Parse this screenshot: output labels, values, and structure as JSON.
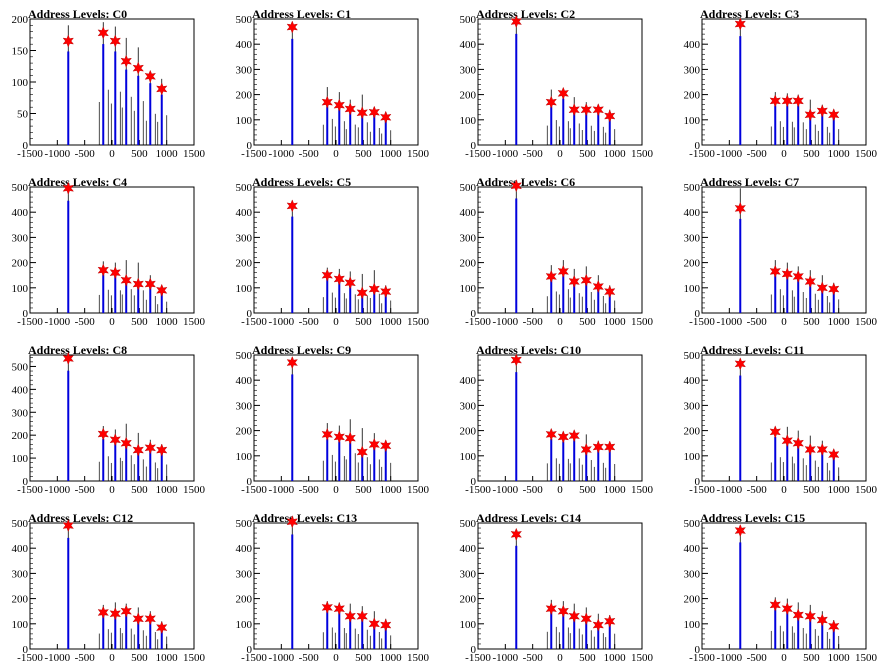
{
  "chart_data": [
    {
      "type": "bar",
      "title": "Address Levels: C0",
      "xlim": [
        -1500,
        1500
      ],
      "ylim": [
        0,
        200
      ],
      "yticks": [
        0,
        50,
        100,
        150,
        200
      ],
      "xticks": [
        -1500,
        -1000,
        -500,
        0,
        500,
        1000,
        1500
      ],
      "x": [
        -800,
        -160,
        60,
        260,
        480,
        700,
        910
      ],
      "peak_markers": [
        165,
        178,
        165,
        133,
        122,
        109,
        89
      ],
      "spike_heights": [
        190,
        195,
        188,
        170,
        155,
        110,
        105
      ]
    },
    {
      "type": "bar",
      "title": "Address Levels: C1",
      "xlim": [
        -1500,
        1500
      ],
      "ylim": [
        0,
        500
      ],
      "yticks": [
        0,
        100,
        200,
        300,
        400,
        500
      ],
      "xticks": [
        -1500,
        -1000,
        -500,
        0,
        500,
        1000,
        1500
      ],
      "x": [
        -800,
        -160,
        60,
        260,
        480,
        700,
        910
      ],
      "peak_markers": [
        468,
        170,
        158,
        143,
        128,
        130,
        110
      ],
      "spike_heights": [
        470,
        230,
        210,
        180,
        200,
        150,
        130
      ]
    },
    {
      "type": "bar",
      "title": "Address Levels: C2",
      "xlim": [
        -1500,
        1500
      ],
      "ylim": [
        0,
        500
      ],
      "yticks": [
        0,
        100,
        200,
        300,
        400,
        500
      ],
      "xticks": [
        -1500,
        -1000,
        -500,
        0,
        500,
        1000,
        1500
      ],
      "x": [
        -800,
        -160,
        60,
        260,
        480,
        700,
        910
      ],
      "peak_markers": [
        490,
        170,
        205,
        140,
        140,
        140,
        115
      ],
      "spike_heights": [
        490,
        220,
        210,
        190,
        170,
        160,
        140
      ]
    },
    {
      "type": "bar",
      "title": "Address Levels: C3",
      "xlim": [
        -1500,
        1500
      ],
      "ylim": [
        0,
        500
      ],
      "yticks": [
        0,
        100,
        200,
        300,
        400
      ],
      "xticks": [
        -1500,
        -1000,
        -500,
        0,
        500,
        1000,
        1500
      ],
      "x": [
        -800,
        -160,
        60,
        260,
        480,
        700,
        910
      ],
      "peak_markers": [
        480,
        175,
        175,
        175,
        120,
        135,
        120
      ],
      "spike_heights": [
        490,
        210,
        205,
        200,
        180,
        160,
        140
      ]
    },
    {
      "type": "bar",
      "title": "Address Levels: C4",
      "xlim": [
        -1500,
        1500
      ],
      "ylim": [
        0,
        500
      ],
      "yticks": [
        0,
        100,
        200,
        300,
        400,
        500
      ],
      "xticks": [
        -1500,
        -1000,
        -500,
        0,
        500,
        1000,
        1500
      ],
      "x": [
        -800,
        -160,
        60,
        260,
        480,
        700,
        910
      ],
      "peak_markers": [
        495,
        170,
        160,
        130,
        115,
        115,
        90
      ],
      "spike_heights": [
        495,
        205,
        200,
        210,
        200,
        150,
        100
      ]
    },
    {
      "type": "bar",
      "title": "Address Levels: C5",
      "xlim": [
        -1500,
        1500
      ],
      "ylim": [
        0,
        500
      ],
      "yticks": [
        0,
        100,
        200,
        300,
        400,
        500
      ],
      "xticks": [
        -1500,
        -1000,
        -500,
        0,
        500,
        1000,
        1500
      ],
      "x": [
        -800,
        -160,
        60,
        260,
        480,
        700,
        910
      ],
      "peak_markers": [
        425,
        150,
        135,
        120,
        80,
        95,
        85
      ],
      "spike_heights": [
        430,
        180,
        175,
        165,
        155,
        170,
        110
      ]
    },
    {
      "type": "bar",
      "title": "Address Levels: C6",
      "xlim": [
        -1500,
        1500
      ],
      "ylim": [
        0,
        500
      ],
      "yticks": [
        0,
        100,
        200,
        300,
        400,
        500
      ],
      "xticks": [
        -1500,
        -1000,
        -500,
        0,
        500,
        1000,
        1500
      ],
      "x": [
        -800,
        -160,
        60,
        260,
        480,
        700,
        910
      ],
      "peak_markers": [
        505,
        145,
        165,
        125,
        130,
        105,
        85
      ],
      "spike_heights": [
        505,
        190,
        210,
        175,
        185,
        150,
        110
      ]
    },
    {
      "type": "bar",
      "title": "Address Levels: C7",
      "xlim": [
        -1500,
        1500
      ],
      "ylim": [
        0,
        500
      ],
      "yticks": [
        0,
        100,
        200,
        300,
        400,
        500
      ],
      "xticks": [
        -1500,
        -1000,
        -500,
        0,
        500,
        1000,
        1500
      ],
      "x": [
        -800,
        -160,
        60,
        260,
        480,
        700,
        910
      ],
      "peak_markers": [
        415,
        165,
        155,
        145,
        125,
        100,
        95
      ],
      "spike_heights": [
        495,
        210,
        200,
        185,
        170,
        150,
        120
      ]
    },
    {
      "type": "bar",
      "title": "Address Levels: C8",
      "xlim": [
        -1500,
        1500
      ],
      "ylim": [
        0,
        550
      ],
      "yticks": [
        0,
        100,
        200,
        300,
        400,
        500
      ],
      "xticks": [
        -1500,
        -1000,
        -500,
        0,
        500,
        1000,
        1500
      ],
      "x": [
        -800,
        -160,
        60,
        260,
        480,
        700,
        910
      ],
      "peak_markers": [
        535,
        205,
        180,
        165,
        135,
        145,
        135
      ],
      "spike_heights": [
        540,
        240,
        225,
        250,
        210,
        180,
        160
      ]
    },
    {
      "type": "bar",
      "title": "Address Levels: C9",
      "xlim": [
        -1500,
        1500
      ],
      "ylim": [
        0,
        500
      ],
      "yticks": [
        0,
        100,
        200,
        300,
        400,
        500
      ],
      "xticks": [
        -1500,
        -1000,
        -500,
        0,
        500,
        1000,
        1500
      ],
      "x": [
        -800,
        -160,
        60,
        260,
        480,
        700,
        910
      ],
      "peak_markers": [
        470,
        185,
        175,
        170,
        115,
        145,
        140
      ],
      "spike_heights": [
        475,
        230,
        220,
        245,
        210,
        190,
        160
      ]
    },
    {
      "type": "bar",
      "title": "Address Levels: C10",
      "xlim": [
        -1500,
        1500
      ],
      "ylim": [
        0,
        500
      ],
      "yticks": [
        0,
        100,
        200,
        300,
        400
      ],
      "xticks": [
        -1500,
        -1000,
        -500,
        0,
        500,
        1000,
        1500
      ],
      "x": [
        -800,
        -160,
        60,
        260,
        480,
        700,
        910
      ],
      "peak_markers": [
        480,
        185,
        175,
        180,
        125,
        135,
        135
      ],
      "spike_heights": [
        490,
        200,
        195,
        200,
        185,
        160,
        150
      ]
    },
    {
      "type": "bar",
      "title": "Address Levels: C11",
      "xlim": [
        -1500,
        1500
      ],
      "ylim": [
        0,
        500
      ],
      "yticks": [
        0,
        100,
        200,
        300,
        400,
        500
      ],
      "xticks": [
        -1500,
        -1000,
        -500,
        0,
        500,
        1000,
        1500
      ],
      "x": [
        -800,
        -160,
        60,
        260,
        480,
        700,
        910
      ],
      "peak_markers": [
        465,
        195,
        160,
        150,
        125,
        125,
        105
      ],
      "spike_heights": [
        470,
        210,
        215,
        200,
        180,
        160,
        120
      ]
    },
    {
      "type": "bar",
      "title": "Address Levels: C12",
      "xlim": [
        -1500,
        1500
      ],
      "ylim": [
        0,
        500
      ],
      "yticks": [
        0,
        100,
        200,
        300,
        400,
        500
      ],
      "xticks": [
        -1500,
        -1000,
        -500,
        0,
        500,
        1000,
        1500
      ],
      "x": [
        -800,
        -160,
        60,
        260,
        480,
        700,
        910
      ],
      "peak_markers": [
        490,
        145,
        140,
        150,
        120,
        120,
        85
      ],
      "spike_heights": [
        495,
        175,
        185,
        180,
        165,
        150,
        110
      ]
    },
    {
      "type": "bar",
      "title": "Address Levels: C13",
      "xlim": [
        -1500,
        1500
      ],
      "ylim": [
        0,
        500
      ],
      "yticks": [
        0,
        100,
        200,
        300,
        400,
        500
      ],
      "xticks": [
        -1500,
        -1000,
        -500,
        0,
        500,
        1000,
        1500
      ],
      "x": [
        -800,
        -160,
        60,
        260,
        480,
        700,
        910
      ],
      "peak_markers": [
        505,
        165,
        160,
        130,
        130,
        100,
        95
      ],
      "spike_heights": [
        510,
        190,
        185,
        180,
        170,
        150,
        120
      ]
    },
    {
      "type": "bar",
      "title": "Address Levels: C14",
      "xlim": [
        -1500,
        1500
      ],
      "ylim": [
        0,
        500
      ],
      "yticks": [
        0,
        100,
        200,
        300,
        400,
        500
      ],
      "xticks": [
        -1500,
        -1000,
        -500,
        0,
        500,
        1000,
        1500
      ],
      "x": [
        -800,
        -160,
        60,
        260,
        480,
        700,
        910
      ],
      "peak_markers": [
        455,
        160,
        150,
        130,
        120,
        95,
        110
      ],
      "spike_heights": [
        470,
        195,
        190,
        180,
        165,
        140,
        135
      ]
    },
    {
      "type": "bar",
      "title": "Address Levels: C15",
      "xlim": [
        -1500,
        1500
      ],
      "ylim": [
        0,
        500
      ],
      "yticks": [
        0,
        100,
        200,
        300,
        400,
        500
      ],
      "xticks": [
        -1500,
        -1000,
        -500,
        0,
        500,
        1000,
        1500
      ],
      "x": [
        -800,
        -160,
        60,
        260,
        480,
        700,
        910
      ],
      "peak_markers": [
        470,
        175,
        160,
        135,
        130,
        115,
        90
      ],
      "spike_heights": [
        475,
        205,
        200,
        185,
        175,
        150,
        115
      ]
    }
  ],
  "style": {
    "spike_color": "#000000",
    "fill_color": "#0000dd",
    "marker_color": "#ff0000",
    "axis_color": "#000000"
  }
}
